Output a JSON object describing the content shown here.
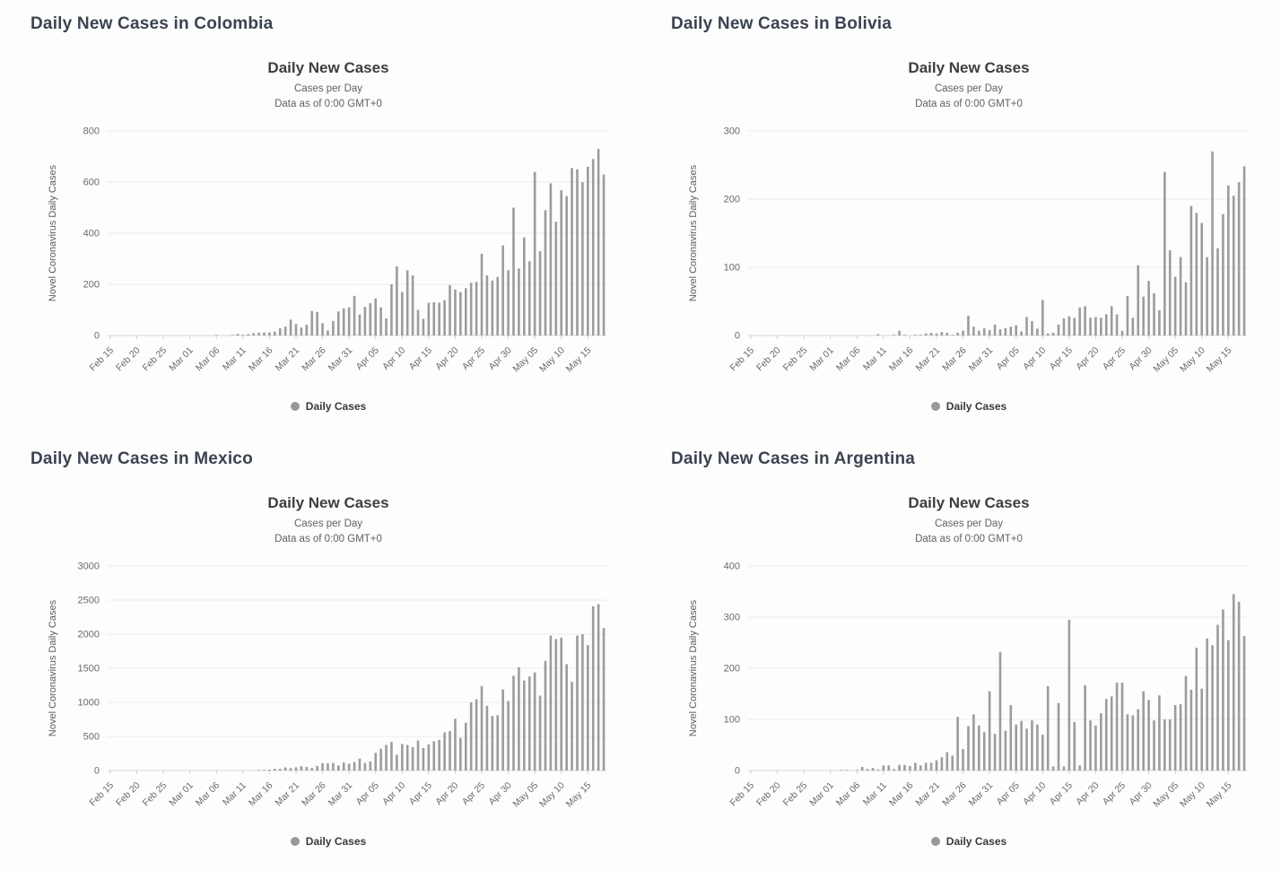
{
  "page": {
    "background": "#fdfdfd"
  },
  "dates": [
    "Feb 15",
    "Feb 16",
    "Feb 17",
    "Feb 18",
    "Feb 19",
    "Feb 20",
    "Feb 21",
    "Feb 22",
    "Feb 23",
    "Feb 24",
    "Feb 25",
    "Feb 26",
    "Feb 27",
    "Feb 28",
    "Feb 29",
    "Mar 01",
    "Mar 02",
    "Mar 03",
    "Mar 04",
    "Mar 05",
    "Mar 06",
    "Mar 07",
    "Mar 08",
    "Mar 09",
    "Mar 10",
    "Mar 11",
    "Mar 12",
    "Mar 13",
    "Mar 14",
    "Mar 15",
    "Mar 16",
    "Mar 17",
    "Mar 18",
    "Mar 19",
    "Mar 20",
    "Mar 21",
    "Mar 22",
    "Mar 23",
    "Mar 24",
    "Mar 25",
    "Mar 26",
    "Mar 27",
    "Mar 28",
    "Mar 29",
    "Mar 30",
    "Mar 31",
    "Apr 01",
    "Apr 02",
    "Apr 03",
    "Apr 04",
    "Apr 05",
    "Apr 06",
    "Apr 07",
    "Apr 08",
    "Apr 09",
    "Apr 10",
    "Apr 11",
    "Apr 12",
    "Apr 13",
    "Apr 14",
    "Apr 15",
    "Apr 16",
    "Apr 17",
    "Apr 18",
    "Apr 19",
    "Apr 20",
    "Apr 21",
    "Apr 22",
    "Apr 23",
    "Apr 24",
    "Apr 25",
    "Apr 26",
    "Apr 27",
    "Apr 28",
    "Apr 29",
    "Apr 30",
    "May 01",
    "May 02",
    "May 03",
    "May 04",
    "May 05",
    "May 06",
    "May 07",
    "May 08",
    "May 09",
    "May 10",
    "May 11",
    "May 12",
    "May 13",
    "May 14",
    "May 15",
    "May 16",
    "May 17",
    "May 18"
  ],
  "xtick_every": 5,
  "chart_data": [
    {
      "type": "bar",
      "country": "Colombia",
      "heading": "Daily New Cases in Colombia",
      "title": "Daily New Cases",
      "subtitle1": "Cases per Day",
      "subtitle2": "Data as of 0:00 GMT+0",
      "xlabel": "",
      "ylabel": "Novel Coronavirus Daily Cases",
      "legend_label": "Daily Cases",
      "legend_position": "bottom",
      "grid": true,
      "bar_color": "#9c9c9c",
      "ylim": [
        0,
        800
      ],
      "yticks": [
        0,
        200,
        400,
        600,
        800
      ],
      "values": [
        0,
        0,
        0,
        0,
        0,
        0,
        0,
        0,
        0,
        0,
        0,
        0,
        0,
        0,
        0,
        0,
        0,
        0,
        0,
        0,
        1,
        0,
        0,
        2,
        6,
        3,
        5,
        9,
        11,
        12,
        12,
        15,
        28,
        35,
        62,
        45,
        31,
        42,
        96,
        92,
        48,
        20,
        57,
        94,
        106,
        110,
        155,
        82,
        112,
        126,
        145,
        110,
        67,
        200,
        270,
        170,
        255,
        235,
        100,
        65,
        128,
        130,
        128,
        138,
        197,
        180,
        170,
        185,
        206,
        210,
        320,
        235,
        215,
        229,
        352,
        255,
        500,
        262,
        383,
        290,
        640,
        330,
        490,
        595,
        445,
        568,
        545,
        655,
        650,
        600,
        660,
        690,
        730,
        630
      ]
    },
    {
      "type": "bar",
      "country": "Bolivia",
      "heading": "Daily New Cases in Bolivia",
      "title": "Daily New Cases",
      "subtitle1": "Cases per Day",
      "subtitle2": "Data as of 0:00 GMT+0",
      "xlabel": "",
      "ylabel": "Novel Coronavirus Daily Cases",
      "legend_label": "Daily Cases",
      "legend_position": "bottom",
      "grid": true,
      "bar_color": "#9c9c9c",
      "ylim": [
        0,
        300
      ],
      "yticks": [
        0,
        100,
        200,
        300
      ],
      "values": [
        0,
        0,
        0,
        0,
        0,
        0,
        0,
        0,
        0,
        0,
        0,
        0,
        0,
        0,
        0,
        0,
        0,
        0,
        0,
        0,
        0,
        0,
        0,
        0,
        2,
        0,
        0,
        1,
        7,
        1,
        0,
        1,
        1,
        3,
        4,
        3,
        5,
        4,
        1,
        4,
        7,
        29,
        13,
        7,
        11,
        8,
        16,
        9,
        11,
        13,
        15,
        6,
        27,
        21,
        10,
        52,
        3,
        4,
        16,
        25,
        28,
        26,
        41,
        43,
        26,
        27,
        26,
        31,
        43,
        31,
        7,
        58,
        26,
        103,
        57,
        80,
        62,
        37,
        240,
        125,
        86,
        115,
        78,
        190,
        180,
        165,
        115,
        270,
        128,
        178,
        220,
        205,
        225,
        248
      ]
    },
    {
      "type": "bar",
      "country": "Mexico",
      "heading": "Daily New Cases in Mexico",
      "title": "Daily New Cases",
      "subtitle1": "Cases per Day",
      "subtitle2": "Data as of 0:00 GMT+0",
      "xlabel": "",
      "ylabel": "Novel Coronavirus Daily Cases",
      "legend_label": "Daily Cases",
      "legend_position": "bottom",
      "grid": true,
      "bar_color": "#9c9c9c",
      "ylim": [
        0,
        3000
      ],
      "yticks": [
        0,
        500,
        1000,
        1500,
        2000,
        2500,
        3000
      ],
      "values": [
        0,
        0,
        0,
        0,
        0,
        0,
        0,
        0,
        0,
        0,
        0,
        0,
        0,
        0,
        0,
        0,
        0,
        0,
        0,
        0,
        0,
        0,
        0,
        0,
        0,
        0,
        0,
        0,
        3,
        12,
        14,
        25,
        25,
        46,
        35,
        48,
        65,
        52,
        38,
        68,
        110,
        105,
        112,
        75,
        120,
        100,
        125,
        175,
        110,
        135,
        260,
        320,
        375,
        420,
        230,
        390,
        375,
        345,
        440,
        330,
        385,
        430,
        450,
        560,
        580,
        760,
        480,
        700,
        1000,
        1045,
        1240,
        950,
        800,
        810,
        1190,
        1020,
        1390,
        1515,
        1320,
        1380,
        1440,
        1100,
        1610,
        1980,
        1930,
        1950,
        1560,
        1300,
        1980,
        2000,
        1840,
        2410,
        2440,
        2090
      ]
    },
    {
      "type": "bar",
      "country": "Argentina",
      "heading": "Daily New Cases in Argentina",
      "title": "Daily New Cases",
      "subtitle1": "Cases per Day",
      "subtitle2": "Data as of 0:00 GMT+0",
      "xlabel": "",
      "ylabel": "Novel Coronavirus Daily Cases",
      "legend_label": "Daily Cases",
      "legend_position": "bottom",
      "grid": true,
      "bar_color": "#9c9c9c",
      "ylim": [
        0,
        400
      ],
      "yticks": [
        0,
        100,
        200,
        300,
        400
      ],
      "values": [
        0,
        0,
        0,
        0,
        0,
        0,
        0,
        0,
        0,
        0,
        0,
        0,
        0,
        0,
        0,
        0,
        0,
        1,
        1,
        0,
        1,
        7,
        3,
        5,
        2,
        10,
        10,
        3,
        11,
        11,
        9,
        15,
        10,
        15,
        15,
        20,
        26,
        36,
        29,
        105,
        42,
        87,
        110,
        88,
        75,
        155,
        72,
        232,
        78,
        128,
        90,
        97,
        82,
        98,
        90,
        70,
        165,
        8,
        132,
        8,
        295,
        95,
        10,
        167,
        98,
        88,
        112,
        140,
        145,
        172,
        172,
        110,
        108,
        120,
        155,
        138,
        98,
        147,
        100,
        100,
        128,
        130,
        185,
        158,
        240,
        160,
        258,
        245,
        285,
        315,
        255,
        345,
        330,
        263
      ]
    }
  ]
}
